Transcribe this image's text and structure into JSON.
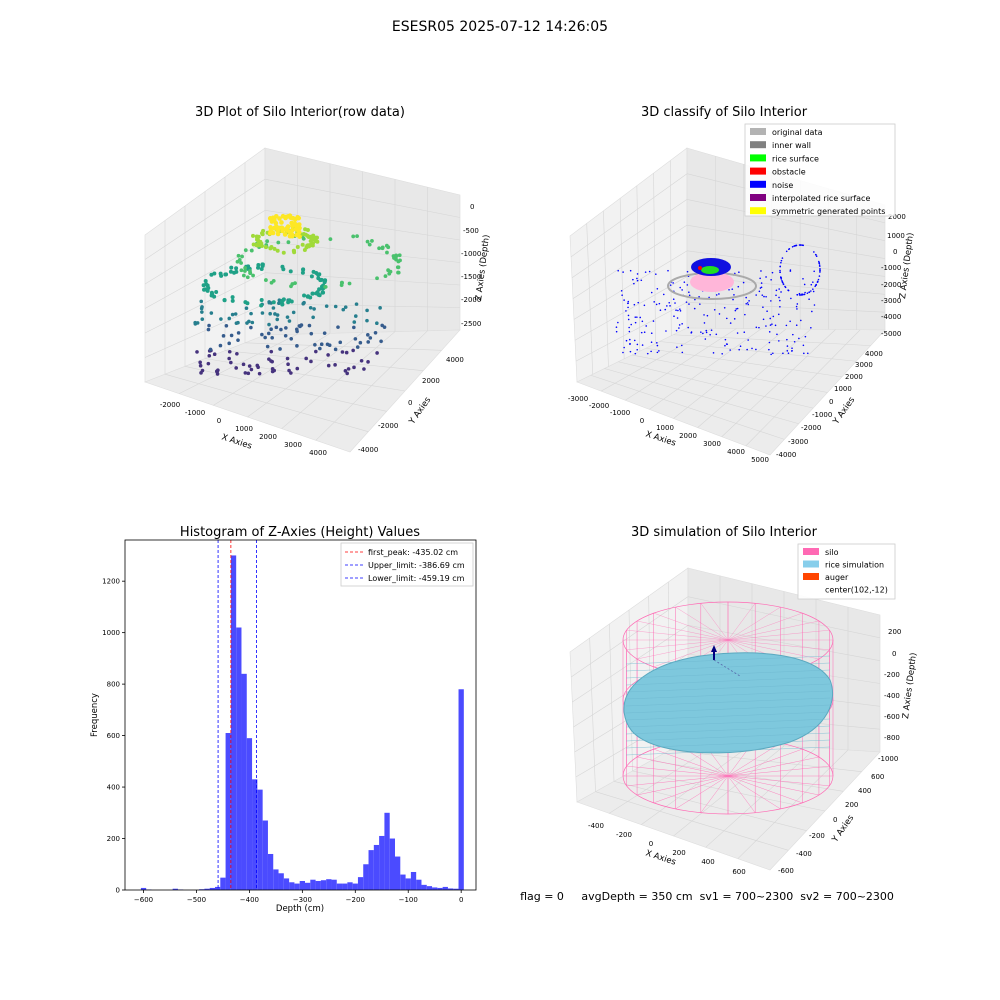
{
  "figure": {
    "title": "ESESR05 2025-07-12 14:26:05",
    "status_text": "flag = 0     avgDepth = 350 cm  sv1 = 700~2300  sv2 = 700~2300"
  },
  "panels": {
    "raw": {
      "title": "3D Plot of Silo Interior(row data)",
      "xlabel": "X Axies",
      "ylabel": "Y Axies",
      "zlabel": "Z Axies (Depth)",
      "xticks": [
        "-2000",
        "-1000",
        "0",
        "1000",
        "2000",
        "3000",
        "4000"
      ],
      "yticks": [
        "-4000",
        "-2000",
        "0",
        "2000",
        "4000"
      ],
      "zticks": [
        "0",
        "-500",
        "-1000",
        "-1500",
        "-2000",
        "-2500"
      ]
    },
    "classify": {
      "title": "3D classify of Silo Interior",
      "xlabel": "X Axies",
      "ylabel": "Y Axies",
      "zlabel": "Z Axies (Depth)",
      "xticks": [
        "-3000",
        "-2000",
        "-1000",
        "0",
        "1000",
        "2000",
        "3000",
        "4000",
        "5000"
      ],
      "yticks": [
        "-4000",
        "-3000",
        "-2000",
        "-1000",
        "0",
        "1000",
        "2000",
        "3000",
        "4000"
      ],
      "zticks": [
        "2000",
        "1000",
        "0",
        "-1000",
        "-2000",
        "-3000",
        "-4000",
        "-5000"
      ],
      "legend": [
        {
          "label": "original data",
          "color": "#b3b3b3"
        },
        {
          "label": "inner wall",
          "color": "#808080"
        },
        {
          "label": "rice surface",
          "color": "#00ff00"
        },
        {
          "label": "obstacle",
          "color": "#ff0000"
        },
        {
          "label": "noise",
          "color": "#0000ff"
        },
        {
          "label": "interpolated rice surface",
          "color": "#800080"
        },
        {
          "label": "symmetric generated points",
          "color": "#ffff00"
        }
      ]
    },
    "simulation": {
      "title": "3D simulation of Silo Interior",
      "xlabel": "X Axies",
      "ylabel": "Y Axies",
      "zlabel": "Z Axies (Depth)",
      "xticks": [
        "-400",
        "-200",
        "0",
        "200",
        "400",
        "600"
      ],
      "yticks": [
        "-600",
        "-400",
        "-200",
        "0",
        "200",
        "400",
        "600"
      ],
      "zticks": [
        "200",
        "0",
        "-200",
        "-400",
        "-600",
        "-800",
        "-1000"
      ],
      "legend": [
        {
          "label": "silo",
          "color": "#ff69b4"
        },
        {
          "label": "rice simulation",
          "color": "#87ceeb"
        },
        {
          "label": "auger",
          "color": "#ff4500"
        },
        {
          "label": "center(102,-12)",
          "color": ""
        }
      ]
    }
  },
  "chart_data": {
    "type": "bar",
    "title": "Histogram of Z-Axies (Height) Values",
    "xlabel": "Depth (cm)",
    "ylabel": "Frequency",
    "xlim": [
      -635,
      28
    ],
    "ylim": [
      0,
      1360
    ],
    "xticks": [
      -600,
      -500,
      -400,
      -300,
      -200,
      -100,
      0
    ],
    "yticks": [
      0,
      200,
      400,
      600,
      800,
      1000,
      1200
    ],
    "bin_width": 10,
    "bin_starts": [
      -605,
      -595,
      -585,
      -575,
      -565,
      -555,
      -545,
      -535,
      -525,
      -515,
      -505,
      -495,
      -485,
      -475,
      -465,
      -455,
      -445,
      -435,
      -425,
      -415,
      -405,
      -395,
      -385,
      -375,
      -365,
      -355,
      -345,
      -335,
      -325,
      -315,
      -305,
      -295,
      -285,
      -275,
      -265,
      -255,
      -245,
      -235,
      -225,
      -215,
      -205,
      -195,
      -185,
      -175,
      -165,
      -155,
      -145,
      -135,
      -125,
      -115,
      -105,
      -95,
      -85,
      -75,
      -65,
      -55,
      -45,
      -35,
      -25,
      -15,
      -5
    ],
    "values": [
      8,
      2,
      0,
      0,
      0,
      0,
      5,
      2,
      0,
      0,
      0,
      3,
      5,
      8,
      12,
      48,
      610,
      1300,
      1020,
      840,
      590,
      430,
      390,
      270,
      140,
      80,
      65,
      45,
      30,
      25,
      35,
      28,
      40,
      35,
      38,
      42,
      40,
      25,
      25,
      30,
      25,
      50,
      100,
      155,
      175,
      210,
      300,
      200,
      130,
      60,
      45,
      70,
      40,
      20,
      15,
      10,
      8,
      12,
      6,
      5,
      780
    ],
    "vlines": [
      {
        "label": "first_peak: -435.02 cm",
        "x": -435.02,
        "color": "#ff0000"
      },
      {
        "label": "Upper_limit: -386.69 cm",
        "x": -386.69,
        "color": "#0000ff"
      },
      {
        "label": "Lower_limit: -459.19 cm",
        "x": -459.19,
        "color": "#0000ff"
      }
    ],
    "bar_color": "#4b4bff"
  }
}
